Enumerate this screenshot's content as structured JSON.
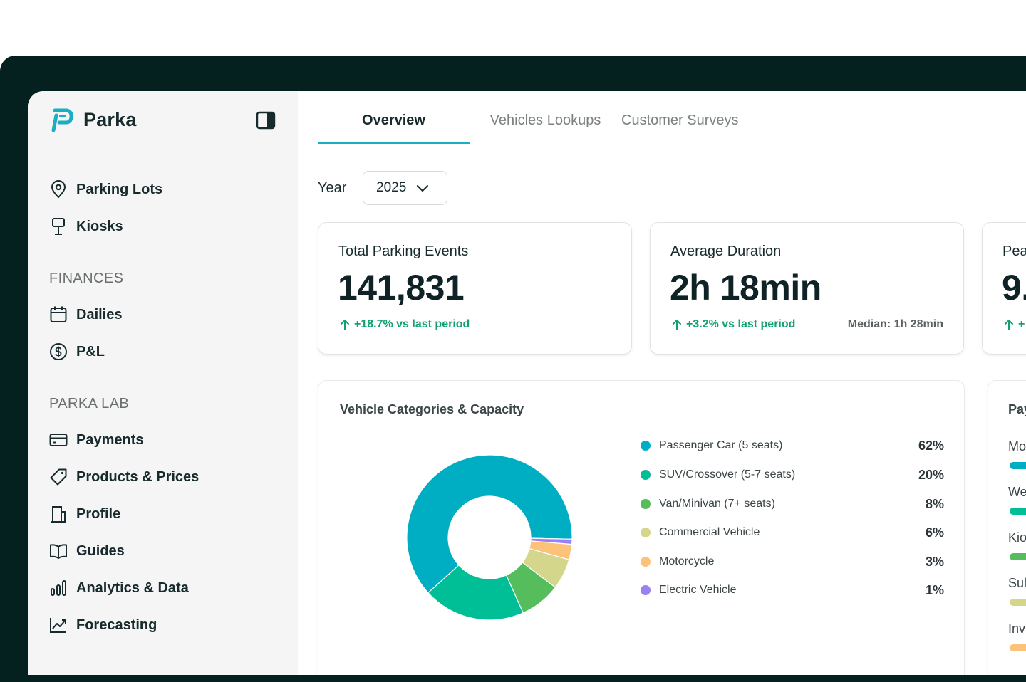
{
  "brand": {
    "name": "Parka",
    "color": "#1aaec4"
  },
  "sidebar": {
    "items_top": [
      {
        "label": "Parking Lots",
        "icon": "map-pin-icon"
      },
      {
        "label": "Kiosks",
        "icon": "kiosk-icon"
      }
    ],
    "section_finances": "FINANCES",
    "items_finances": [
      {
        "label": "Dailies",
        "icon": "calendar-icon"
      },
      {
        "label": "P&L",
        "icon": "dollar-circle-icon"
      }
    ],
    "section_lab": "PARKA LAB",
    "items_lab": [
      {
        "label": "Payments",
        "icon": "credit-card-icon"
      },
      {
        "label": "Products & Prices",
        "icon": "tag-icon"
      },
      {
        "label": "Profile",
        "icon": "building-icon"
      },
      {
        "label": "Guides",
        "icon": "book-icon"
      },
      {
        "label": "Analytics & Data",
        "icon": "bar-chart-icon"
      },
      {
        "label": "Forecasting",
        "icon": "trend-line-icon"
      }
    ]
  },
  "tabs": [
    {
      "label": "Overview",
      "active": true
    },
    {
      "label": "Vehicles Lookups",
      "active": false
    },
    {
      "label": "Customer Surveys",
      "active": false
    }
  ],
  "filter": {
    "year_label": "Year",
    "year_value": "2025"
  },
  "kpis": [
    {
      "title": "Total Parking Events",
      "value": "141,831",
      "delta": "+18.7% vs last period"
    },
    {
      "title": "Average Duration",
      "value": "2h 18min",
      "delta": "+3.2% vs last period",
      "note": "Median: 1h 28min"
    },
    {
      "title": "Pea",
      "value": "9.",
      "delta": "+"
    }
  ],
  "vehicle_panel": {
    "title": "Vehicle Categories & Capacity"
  },
  "chart_data": {
    "type": "pie",
    "title": "Vehicle Categories & Capacity",
    "donut": true,
    "categories": [
      "Passenger Car (5 seats)",
      "SUV/Crossover (5-7 seats)",
      "Van/Minivan (7+ seats)",
      "Commercial Vehicle",
      "Motorcycle",
      "Electric Vehicle"
    ],
    "values": [
      62,
      20,
      8,
      6,
      3,
      1
    ],
    "labels": [
      "62%",
      "20%",
      "8%",
      "6%",
      "3%",
      "1%"
    ],
    "colors": [
      "#00aec3",
      "#00bf97",
      "#55bd5b",
      "#d4d68b",
      "#fcc27a",
      "#9b7ff5"
    ],
    "legend_position": "right"
  },
  "payments_panel": {
    "title": "Pay",
    "rows": [
      {
        "label": "Mo",
        "color": "#00aec3"
      },
      {
        "label": "We",
        "color": "#00bf97"
      },
      {
        "label": "Kio",
        "color": "#55bd5b"
      },
      {
        "label": "Sul",
        "color": "#d4d68b"
      },
      {
        "label": "Inv",
        "color": "#fcc27a"
      }
    ]
  }
}
